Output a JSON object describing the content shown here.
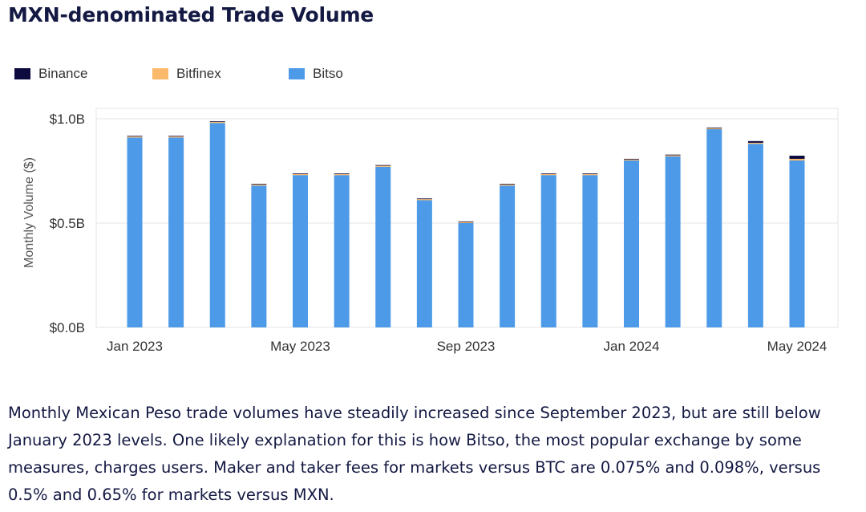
{
  "title": "MXN-denominated Trade Volume",
  "legend": [
    {
      "name": "Binance",
      "color": "#0c0a3e"
    },
    {
      "name": "Bitfinex",
      "color": "#fbb96c"
    },
    {
      "name": "Bitso",
      "color": "#4d9be8"
    }
  ],
  "chart_data": {
    "type": "bar",
    "stacked": true,
    "title": "",
    "xlabel": "",
    "ylabel": "Monthly Volume ($)",
    "ylim": [
      0,
      1.05
    ],
    "y_unit": "billions USD",
    "yticks": [
      {
        "value": 0,
        "label": "$0.0B"
      },
      {
        "value": 0.5,
        "label": "$0.5B"
      },
      {
        "value": 1.0,
        "label": "$1.0B"
      }
    ],
    "categories": [
      "2023-01",
      "2023-02",
      "2023-03",
      "2023-04",
      "2023-05",
      "2023-06",
      "2023-07",
      "2023-08",
      "2023-09",
      "2023-10",
      "2023-11",
      "2023-12",
      "2024-01",
      "2024-02",
      "2024-03",
      "2024-04",
      "2024-05"
    ],
    "xticks": [
      {
        "index": 0,
        "label": "Jan 2023"
      },
      {
        "index": 4,
        "label": "May 2023"
      },
      {
        "index": 8,
        "label": "Sep 2023"
      },
      {
        "index": 12,
        "label": "Jan 2024"
      },
      {
        "index": 16,
        "label": "May 2024"
      }
    ],
    "series": [
      {
        "name": "Bitso",
        "color": "#4d9be8",
        "values": [
          0.91,
          0.91,
          0.98,
          0.68,
          0.73,
          0.73,
          0.77,
          0.61,
          0.5,
          0.68,
          0.73,
          0.73,
          0.8,
          0.82,
          0.95,
          0.88,
          0.8
        ]
      },
      {
        "name": "Bitfinex",
        "color": "#fbb96c",
        "values": [
          0.005,
          0.005,
          0.005,
          0.005,
          0.005,
          0.005,
          0.005,
          0.005,
          0.005,
          0.005,
          0.005,
          0.005,
          0.005,
          0.005,
          0.005,
          0.005,
          0.008
        ]
      },
      {
        "name": "Binance",
        "color": "#0c0a3e",
        "values": [
          0.002,
          0.002,
          0.002,
          0.002,
          0.002,
          0.002,
          0.002,
          0.002,
          0.002,
          0.002,
          0.002,
          0.002,
          0.002,
          0.002,
          0.002,
          0.008,
          0.015
        ]
      }
    ],
    "grid": true,
    "legend_position": "top-left"
  },
  "description": "Monthly Mexican Peso trade volumes have steadily increased since September 2023, but are still below January 2023 levels. One likely explanation for this is how Bitso, the most popular exchange by some measures, charges users. Maker and taker fees for markets versus BTC are 0.075% and 0.098%, versus 0.5% and 0.65% for markets versus MXN."
}
